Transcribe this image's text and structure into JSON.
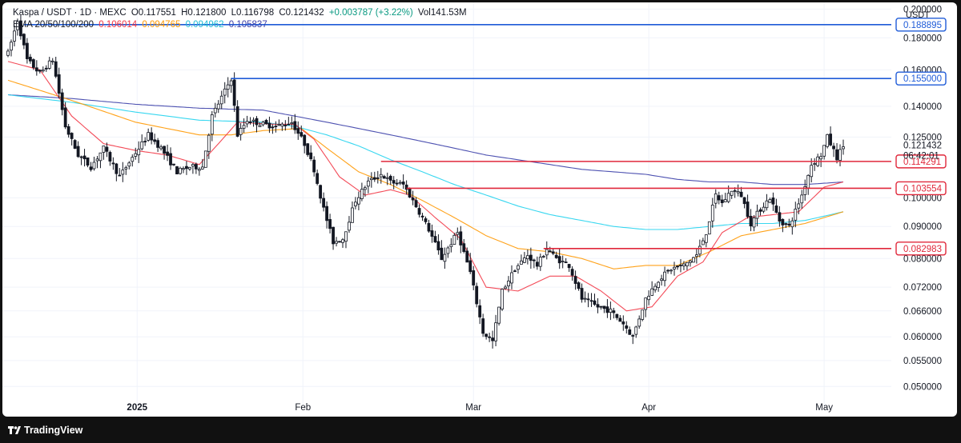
{
  "header": {
    "symbol": "Kaspa / USDT · 1D · MEXC",
    "open": "O0.117551",
    "high": "H0.121800",
    "low": "L0.116798",
    "close": "C0.121432",
    "change": "+0.003787 (+3.22%)",
    "volume": "Vol141.53M",
    "ema_label": "EMA 20/50/100/200",
    "ema20": "0.106014",
    "ema50": "0.094765",
    "ema100": "0.094962",
    "ema200": "0.105837"
  },
  "currency": "USDT",
  "brand": "TradingView",
  "colors": {
    "up": "#ffffff",
    "down": "#131722",
    "ema20": "#f23645",
    "ema50": "#ff9800",
    "ema100": "#22d3ee",
    "ema200": "#3b3fa8",
    "resistance": "#1e5bd8",
    "support": "#e0283b",
    "grid": "#f0f3fa"
  },
  "chart_data": {
    "type": "candlestick",
    "title": "Kaspa / USDT · 1D · MEXC",
    "ylabel": "USDT",
    "scale": "log",
    "ylim": [
      0.0465,
      0.205
    ],
    "x_tick_labels": [
      "2025",
      "Feb",
      "Mar",
      "Apr",
      "May"
    ],
    "y_tick_labels": [
      "0.200000",
      "0.180000",
      "0.160000",
      "0.140000",
      "0.125000",
      "0.100000",
      "0.090000",
      "0.080000",
      "0.072000",
      "0.066000",
      "0.060000",
      "0.055000",
      "0.050000"
    ],
    "price_tags": [
      {
        "label": "0.188895",
        "style": "resistance"
      },
      {
        "label": "0.155000",
        "style": "resistance"
      },
      {
        "label": "0.114291",
        "style": "support"
      },
      {
        "label": "0.103554",
        "style": "support"
      },
      {
        "label": "0.082983",
        "style": "support"
      }
    ],
    "last_price": {
      "label": "0.121432",
      "countdown": "06:42:01"
    },
    "horizontal_levels": [
      {
        "price": 0.188895,
        "start_day": 5,
        "style": "resistance"
      },
      {
        "price": 0.155,
        "start_day": 70,
        "style": "resistance"
      },
      {
        "price": 0.114291,
        "start_day": 117,
        "style": "support"
      },
      {
        "price": 0.103554,
        "start_day": 125,
        "style": "support"
      },
      {
        "price": 0.082983,
        "start_day": 168,
        "style": "support"
      }
    ],
    "pivots": [
      [
        0,
        0.17
      ],
      [
        3,
        0.192
      ],
      [
        6,
        0.166
      ],
      [
        10,
        0.158
      ],
      [
        14,
        0.166
      ],
      [
        18,
        0.13
      ],
      [
        22,
        0.117
      ],
      [
        26,
        0.112
      ],
      [
        30,
        0.12
      ],
      [
        35,
        0.108
      ],
      [
        40,
        0.118
      ],
      [
        44,
        0.126
      ],
      [
        48,
        0.12
      ],
      [
        53,
        0.11
      ],
      [
        57,
        0.112
      ],
      [
        61,
        0.112
      ],
      [
        64,
        0.135
      ],
      [
        68,
        0.148
      ],
      [
        70,
        0.155
      ],
      [
        72,
        0.126
      ],
      [
        75,
        0.133
      ],
      [
        80,
        0.131
      ],
      [
        84,
        0.13
      ],
      [
        89,
        0.132
      ],
      [
        93,
        0.122
      ],
      [
        96,
        0.111
      ],
      [
        99,
        0.096
      ],
      [
        102,
        0.085
      ],
      [
        105,
        0.086
      ],
      [
        109,
        0.099
      ],
      [
        113,
        0.106
      ],
      [
        117,
        0.109
      ],
      [
        120,
        0.106
      ],
      [
        124,
        0.105
      ],
      [
        128,
        0.097
      ],
      [
        132,
        0.089
      ],
      [
        136,
        0.08
      ],
      [
        141,
        0.088
      ],
      [
        145,
        0.076
      ],
      [
        149,
        0.061
      ],
      [
        152,
        0.059
      ],
      [
        155,
        0.071
      ],
      [
        159,
        0.077
      ],
      [
        163,
        0.081
      ],
      [
        166,
        0.078
      ],
      [
        169,
        0.083
      ],
      [
        172,
        0.08
      ],
      [
        176,
        0.078
      ],
      [
        180,
        0.069
      ],
      [
        185,
        0.067
      ],
      [
        189,
        0.066
      ],
      [
        193,
        0.063
      ],
      [
        196,
        0.06
      ],
      [
        200,
        0.069
      ],
      [
        204,
        0.074
      ],
      [
        208,
        0.077
      ],
      [
        212,
        0.078
      ],
      [
        216,
        0.081
      ],
      [
        219,
        0.088
      ],
      [
        222,
        0.101
      ],
      [
        224,
        0.098
      ],
      [
        227,
        0.103
      ],
      [
        230,
        0.101
      ],
      [
        233,
        0.091
      ],
      [
        236,
        0.096
      ],
      [
        239,
        0.1
      ],
      [
        242,
        0.092
      ],
      [
        245,
        0.09
      ],
      [
        249,
        0.101
      ],
      [
        252,
        0.113
      ],
      [
        255,
        0.117
      ],
      [
        257,
        0.125
      ],
      [
        260,
        0.116
      ],
      [
        262,
        0.121
      ]
    ],
    "ema20": [
      [
        0,
        0.165
      ],
      [
        10,
        0.16
      ],
      [
        20,
        0.135
      ],
      [
        30,
        0.122
      ],
      [
        40,
        0.119
      ],
      [
        50,
        0.117
      ],
      [
        60,
        0.113
      ],
      [
        66,
        0.122
      ],
      [
        72,
        0.132
      ],
      [
        84,
        0.131
      ],
      [
        90,
        0.131
      ],
      [
        96,
        0.124
      ],
      [
        104,
        0.108
      ],
      [
        112,
        0.101
      ],
      [
        120,
        0.103
      ],
      [
        126,
        0.101
      ],
      [
        134,
        0.093
      ],
      [
        142,
        0.086
      ],
      [
        150,
        0.072
      ],
      [
        160,
        0.071
      ],
      [
        170,
        0.075
      ],
      [
        178,
        0.075
      ],
      [
        186,
        0.071
      ],
      [
        194,
        0.066
      ],
      [
        202,
        0.067
      ],
      [
        210,
        0.075
      ],
      [
        218,
        0.079
      ],
      [
        224,
        0.088
      ],
      [
        232,
        0.093
      ],
      [
        240,
        0.094
      ],
      [
        248,
        0.095
      ],
      [
        256,
        0.104
      ],
      [
        262,
        0.106
      ]
    ],
    "ema50": [
      [
        0,
        0.154
      ],
      [
        20,
        0.143
      ],
      [
        40,
        0.132
      ],
      [
        60,
        0.126
      ],
      [
        70,
        0.126
      ],
      [
        80,
        0.128
      ],
      [
        92,
        0.129
      ],
      [
        100,
        0.12
      ],
      [
        110,
        0.11
      ],
      [
        120,
        0.105
      ],
      [
        130,
        0.099
      ],
      [
        140,
        0.093
      ],
      [
        150,
        0.087
      ],
      [
        160,
        0.083
      ],
      [
        170,
        0.082
      ],
      [
        180,
        0.08
      ],
      [
        190,
        0.077
      ],
      [
        200,
        0.078
      ],
      [
        210,
        0.078
      ],
      [
        220,
        0.082
      ],
      [
        230,
        0.087
      ],
      [
        240,
        0.089
      ],
      [
        250,
        0.091
      ],
      [
        262,
        0.095
      ]
    ],
    "ema100": [
      [
        0,
        0.146
      ],
      [
        20,
        0.142
      ],
      [
        40,
        0.137
      ],
      [
        60,
        0.133
      ],
      [
        80,
        0.132
      ],
      [
        90,
        0.13
      ],
      [
        100,
        0.126
      ],
      [
        110,
        0.121
      ],
      [
        120,
        0.115
      ],
      [
        130,
        0.11
      ],
      [
        140,
        0.105
      ],
      [
        150,
        0.101
      ],
      [
        160,
        0.097
      ],
      [
        170,
        0.094
      ],
      [
        180,
        0.092
      ],
      [
        190,
        0.09
      ],
      [
        200,
        0.089
      ],
      [
        210,
        0.089
      ],
      [
        220,
        0.09
      ],
      [
        230,
        0.091
      ],
      [
        240,
        0.091
      ],
      [
        250,
        0.092
      ],
      [
        262,
        0.095
      ]
    ],
    "ema200": [
      [
        0,
        0.146
      ],
      [
        20,
        0.144
      ],
      [
        40,
        0.141
      ],
      [
        60,
        0.139
      ],
      [
        80,
        0.138
      ],
      [
        90,
        0.135
      ],
      [
        100,
        0.132
      ],
      [
        110,
        0.129
      ],
      [
        120,
        0.126
      ],
      [
        130,
        0.123
      ],
      [
        140,
        0.12
      ],
      [
        150,
        0.117
      ],
      [
        160,
        0.115
      ],
      [
        170,
        0.113
      ],
      [
        180,
        0.111
      ],
      [
        190,
        0.11
      ],
      [
        200,
        0.109
      ],
      [
        210,
        0.107
      ],
      [
        220,
        0.106
      ],
      [
        230,
        0.106
      ],
      [
        240,
        0.105
      ],
      [
        250,
        0.105
      ],
      [
        262,
        0.106
      ]
    ]
  }
}
